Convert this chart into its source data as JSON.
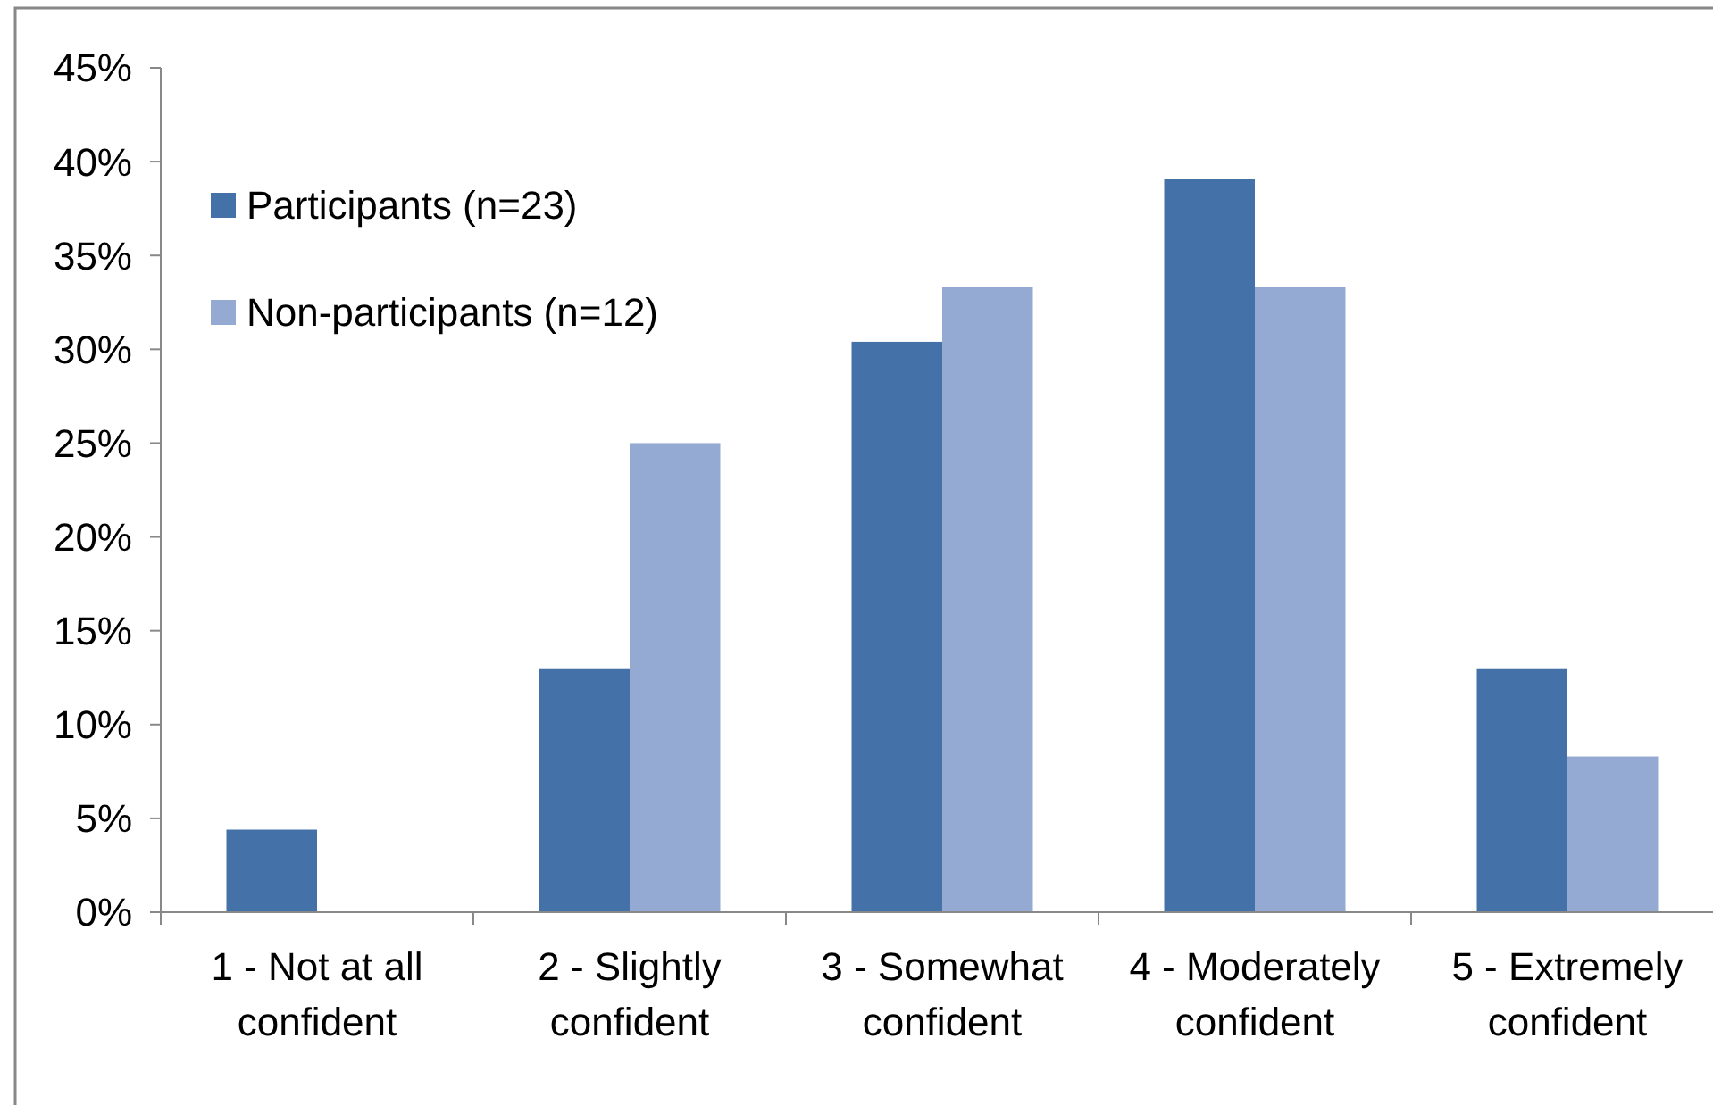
{
  "chart_data": {
    "type": "bar",
    "categories": [
      "1 - Not at all confident",
      "2 - Slightly confident",
      "3 - Somewhat confident",
      "4 - Moderately confident",
      "5 - Extremely confident"
    ],
    "series": [
      {
        "name": "Participants (n=23)",
        "color": "#4472a8",
        "values": [
          4.4,
          13,
          30.4,
          39.1,
          13
        ]
      },
      {
        "name": "Non-participants (n=12)",
        "color": "#94aad3",
        "values": [
          0,
          25,
          33.3,
          33.3,
          8.3
        ]
      }
    ],
    "ylim": [
      0,
      45
    ],
    "yticks": [
      {
        "value": 0,
        "label": "0%"
      },
      {
        "value": 5,
        "label": "5%"
      },
      {
        "value": 10,
        "label": "10%"
      },
      {
        "value": 15,
        "label": "15%"
      },
      {
        "value": 20,
        "label": "20%"
      },
      {
        "value": 25,
        "label": "25%"
      },
      {
        "value": 30,
        "label": "30%"
      },
      {
        "value": 35,
        "label": "35%"
      },
      {
        "value": 40,
        "label": "40%"
      },
      {
        "value": 45,
        "label": "45%"
      }
    ],
    "legend": "top left",
    "grid": false
  }
}
